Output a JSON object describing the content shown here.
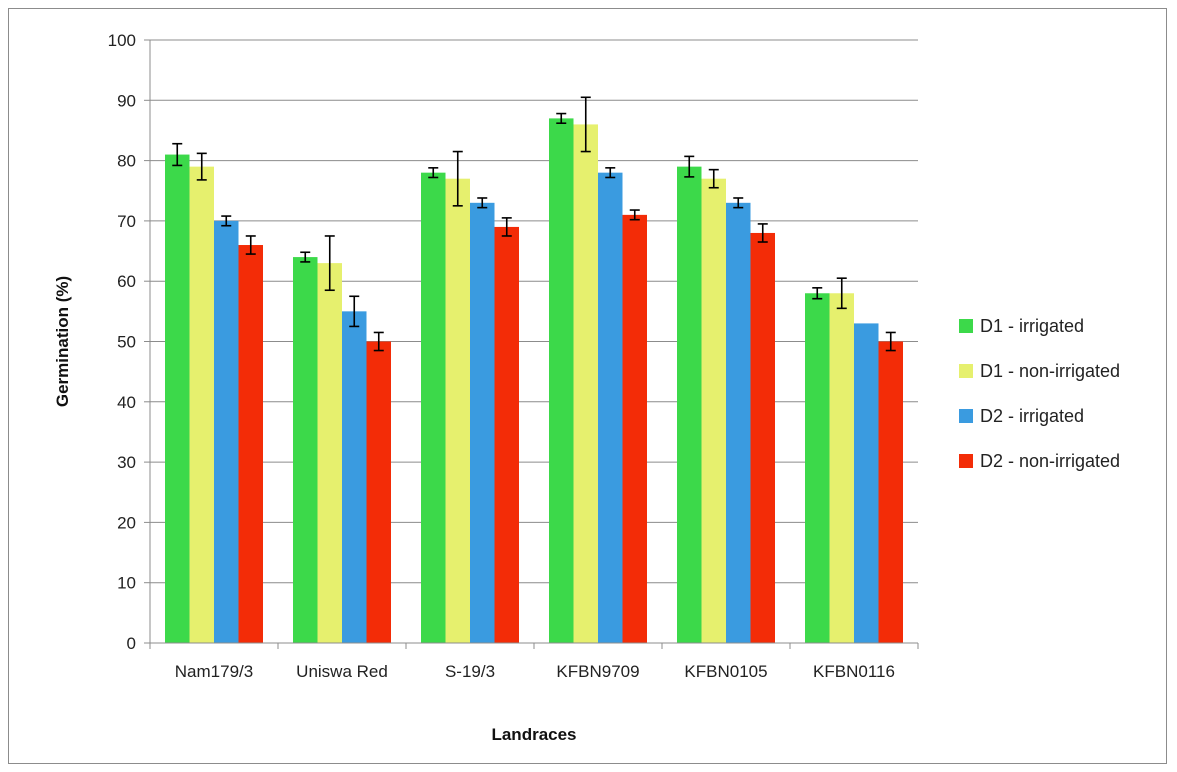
{
  "chart_data": {
    "type": "bar",
    "title": "",
    "xlabel": "Landraces",
    "ylabel": "Germination (%)",
    "ylim": [
      0,
      100
    ],
    "yticks": [
      0,
      10,
      20,
      30,
      40,
      50,
      60,
      70,
      80,
      90,
      100
    ],
    "grid": true,
    "legend_position": "right",
    "categories": [
      "Nam179/3",
      "Uniswa Red",
      "S-19/3",
      "KFBN9709",
      "KFBN0105",
      "KFBN0116"
    ],
    "series": [
      {
        "name": "D1 - irrigated",
        "color": "#3cd94a",
        "values": [
          81,
          64,
          78,
          87,
          79,
          58
        ],
        "errors": [
          1.8,
          0.8,
          0.8,
          0.8,
          1.7,
          0.9
        ]
      },
      {
        "name": "D1 - non-irrigated",
        "color": "#e6f06e",
        "values": [
          79,
          63,
          77,
          86,
          77,
          58
        ],
        "errors": [
          2.2,
          4.5,
          4.5,
          4.5,
          1.5,
          2.5
        ]
      },
      {
        "name": "D2 - irrigated",
        "color": "#3a9be0",
        "values": [
          70,
          55,
          73,
          78,
          73,
          53
        ],
        "errors": [
          0.8,
          2.5,
          0.8,
          0.8,
          0.8,
          0
        ]
      },
      {
        "name": "D2 - non-irrigated",
        "color": "#f32c07",
        "values": [
          66,
          50,
          69,
          71,
          68,
          50
        ],
        "errors": [
          1.5,
          1.5,
          1.5,
          0.8,
          1.5,
          1.5
        ]
      }
    ]
  }
}
